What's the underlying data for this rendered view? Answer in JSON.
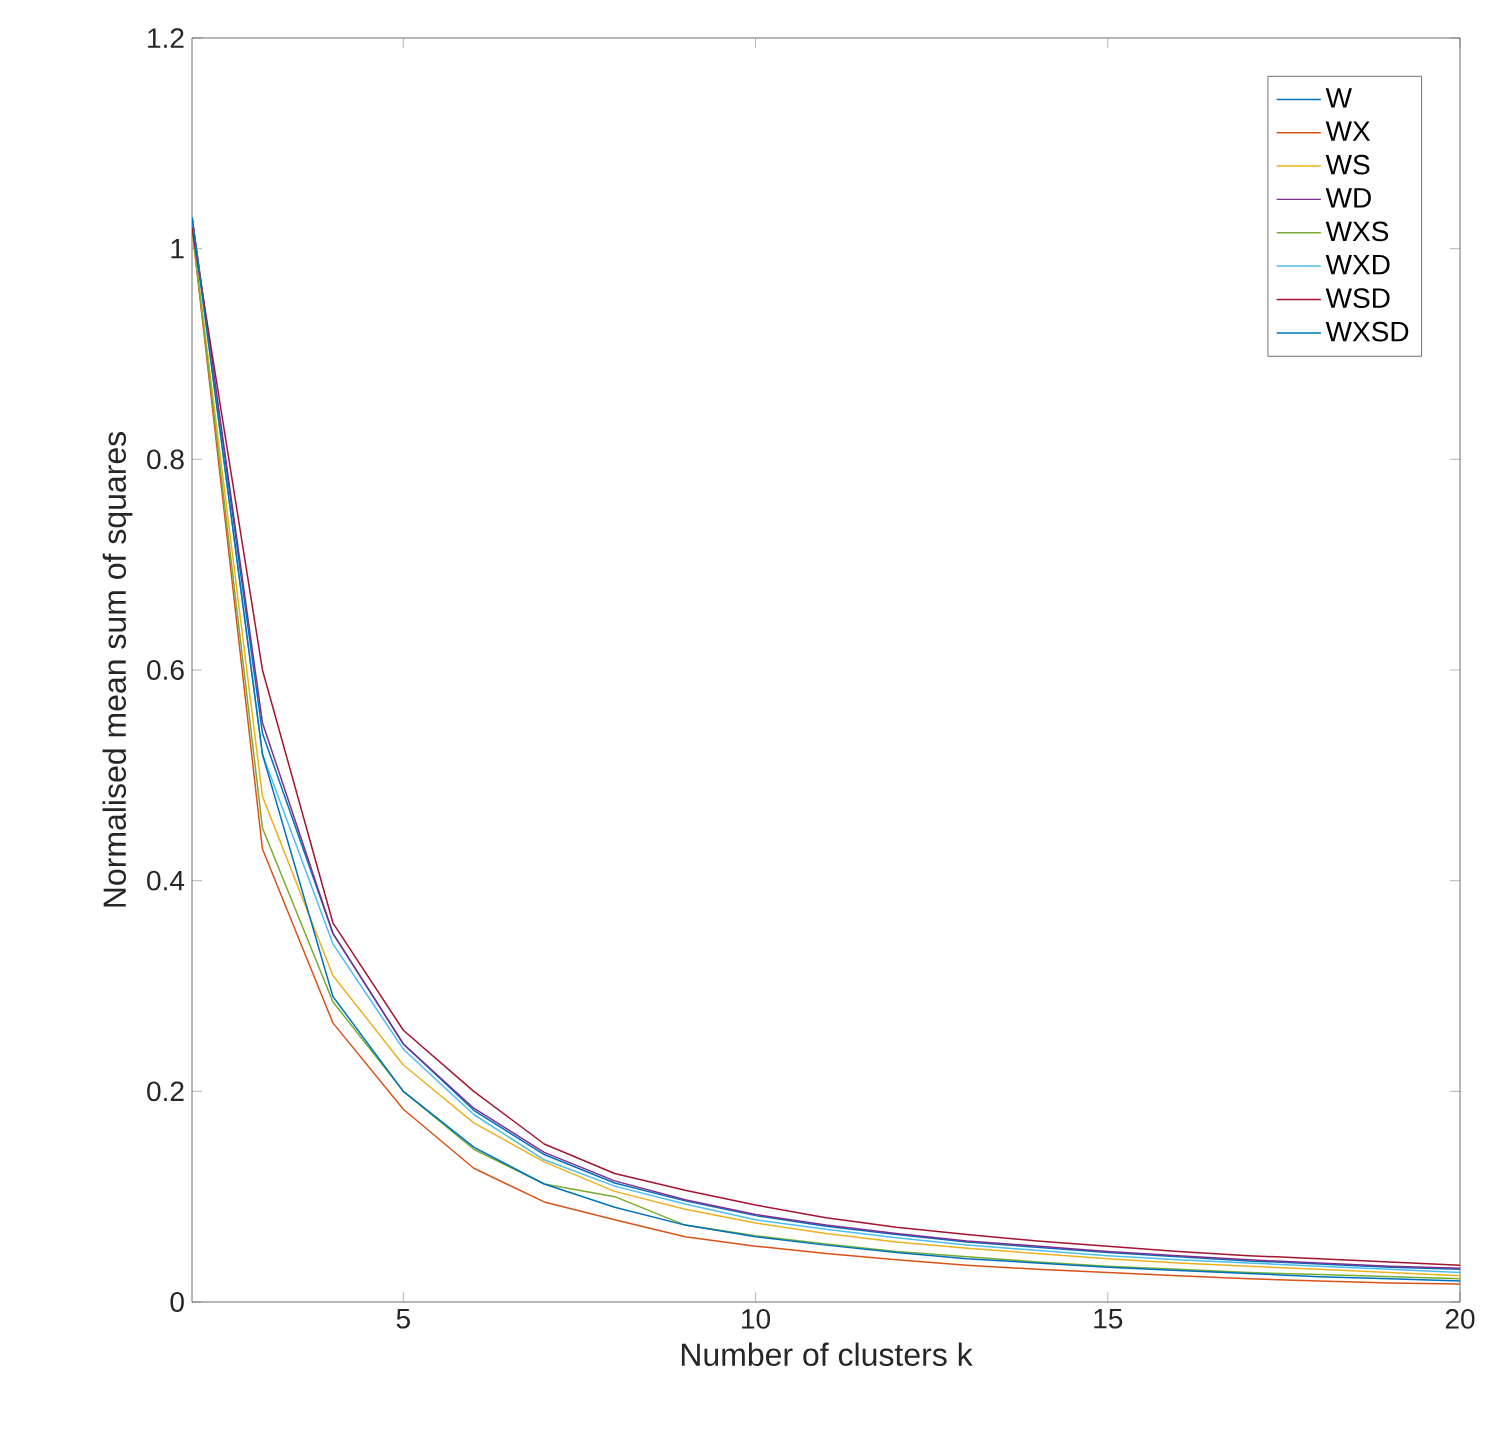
{
  "chart_data": {
    "type": "line",
    "xlabel": "Number of clusters k",
    "ylabel": "Normalised mean sum of squares",
    "x": [
      2,
      3,
      4,
      5,
      6,
      7,
      8,
      9,
      10,
      11,
      12,
      13,
      14,
      15,
      16,
      17,
      18,
      19,
      20
    ],
    "xlim": [
      2,
      20
    ],
    "xticks": [
      5,
      10,
      15,
      20
    ],
    "ylim": [
      0,
      1.2
    ],
    "yticks": [
      0,
      0.2,
      0.4,
      0.6,
      0.8,
      1,
      1.2
    ],
    "grid": false,
    "legend": "top right",
    "marker": "none",
    "line_style": "solid",
    "series": [
      {
        "name": "W",
        "color": "#0072bd",
        "values": [
          1.03,
          0.54,
          0.35,
          0.245,
          0.182,
          0.14,
          0.113,
          0.096,
          0.082,
          0.072,
          0.064,
          0.057,
          0.052,
          0.047,
          0.043,
          0.039,
          0.036,
          0.033,
          0.031
        ]
      },
      {
        "name": "WX",
        "color": "#d95319",
        "values": [
          1.02,
          0.43,
          0.265,
          0.183,
          0.127,
          0.095,
          0.078,
          0.062,
          0.053,
          0.046,
          0.04,
          0.035,
          0.031,
          0.028,
          0.025,
          0.022,
          0.02,
          0.018,
          0.017
        ]
      },
      {
        "name": "WS",
        "color": "#edb120",
        "values": [
          1.02,
          0.48,
          0.31,
          0.225,
          0.17,
          0.133,
          0.105,
          0.088,
          0.075,
          0.065,
          0.057,
          0.051,
          0.046,
          0.041,
          0.037,
          0.034,
          0.031,
          0.028,
          0.025
        ]
      },
      {
        "name": "WD",
        "color": "#7e2f8e",
        "values": [
          1.03,
          0.55,
          0.35,
          0.245,
          0.184,
          0.142,
          0.115,
          0.097,
          0.083,
          0.073,
          0.065,
          0.058,
          0.053,
          0.048,
          0.044,
          0.04,
          0.037,
          0.034,
          0.032
        ]
      },
      {
        "name": "WXS",
        "color": "#77ac30",
        "values": [
          1.02,
          0.45,
          0.285,
          0.2,
          0.145,
          0.112,
          0.1,
          0.073,
          0.063,
          0.055,
          0.048,
          0.043,
          0.038,
          0.034,
          0.031,
          0.028,
          0.026,
          0.024,
          0.022
        ]
      },
      {
        "name": "WXD",
        "color": "#4dbeee",
        "values": [
          1.03,
          0.52,
          0.34,
          0.24,
          0.178,
          0.135,
          0.11,
          0.093,
          0.078,
          0.069,
          0.061,
          0.054,
          0.049,
          0.044,
          0.04,
          0.037,
          0.034,
          0.031,
          0.028
        ]
      },
      {
        "name": "WSD",
        "color": "#a2142f",
        "values": [
          1.02,
          0.6,
          0.36,
          0.258,
          0.2,
          0.15,
          0.122,
          0.106,
          0.092,
          0.08,
          0.071,
          0.064,
          0.058,
          0.053,
          0.048,
          0.044,
          0.041,
          0.038,
          0.035
        ]
      },
      {
        "name": "WXSD",
        "color": "#0072bd",
        "values": [
          1.03,
          0.52,
          0.29,
          0.2,
          0.147,
          0.112,
          0.09,
          0.073,
          0.062,
          0.054,
          0.047,
          0.041,
          0.037,
          0.033,
          0.03,
          0.027,
          0.024,
          0.022,
          0.02
        ]
      }
    ]
  }
}
